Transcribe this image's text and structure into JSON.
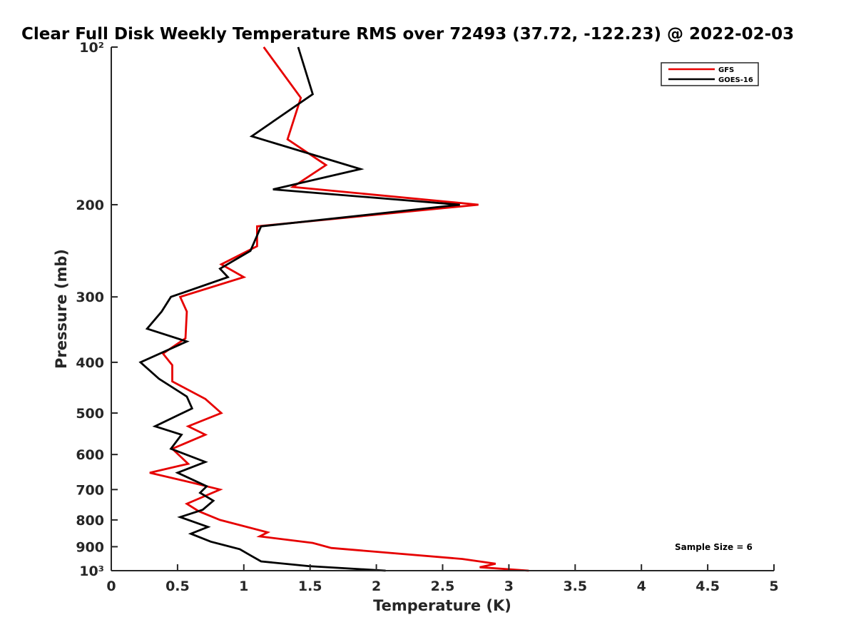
{
  "chart_data": {
    "type": "line",
    "title": "Clear Full Disk Weekly Temperature RMS over 72493 (37.72, -122.23) @ 2022-02-03",
    "xlabel": "Temperature (K)",
    "ylabel": "Pressure (mb)",
    "xlim": [
      0,
      5
    ],
    "ylim": [
      100,
      1000
    ],
    "y_scale": "log",
    "y_reversed": true,
    "grid": false,
    "x_ticks": [
      0,
      0.5,
      1,
      1.5,
      2,
      2.5,
      3,
      3.5,
      4,
      4.5,
      5
    ],
    "x_tick_labels": [
      "0",
      "0.5",
      "1",
      "1.5",
      "2",
      "2.5",
      "3",
      "3.5",
      "4",
      "4.5",
      "5"
    ],
    "y_ticks": [
      100,
      200,
      300,
      400,
      500,
      600,
      700,
      800,
      900,
      1000
    ],
    "y_tick_labels": [
      "10²",
      "200",
      "300",
      "400",
      "500",
      "600",
      "700",
      "800",
      "900",
      "10³"
    ],
    "legend_position": "top-right",
    "annotation": "Sample Size = 6",
    "series": [
      {
        "name": "GFS",
        "color": "#e60000",
        "points": [
          [
            1.15,
            100
          ],
          [
            1.43,
            125
          ],
          [
            1.33,
            150
          ],
          [
            1.62,
            168
          ],
          [
            1.37,
            185
          ],
          [
            2.77,
            200
          ],
          [
            1.1,
            220
          ],
          [
            1.1,
            240
          ],
          [
            0.83,
            260
          ],
          [
            1.0,
            275
          ],
          [
            0.52,
            300
          ],
          [
            0.57,
            320
          ],
          [
            0.56,
            360
          ],
          [
            0.39,
            385
          ],
          [
            0.46,
            405
          ],
          [
            0.46,
            435
          ],
          [
            0.71,
            470
          ],
          [
            0.83,
            500
          ],
          [
            0.58,
            530
          ],
          [
            0.71,
            550
          ],
          [
            0.46,
            585
          ],
          [
            0.58,
            625
          ],
          [
            0.29,
            650
          ],
          [
            0.62,
            680
          ],
          [
            0.82,
            700
          ],
          [
            0.68,
            725
          ],
          [
            0.57,
            745
          ],
          [
            0.66,
            770
          ],
          [
            0.82,
            800
          ],
          [
            1.18,
            845
          ],
          [
            1.12,
            860
          ],
          [
            1.52,
            885
          ],
          [
            1.66,
            905
          ],
          [
            2.65,
            950
          ],
          [
            2.9,
            970
          ],
          [
            2.78,
            985
          ],
          [
            3.15,
            1000
          ]
        ]
      },
      {
        "name": "GOES-16",
        "color": "#000000",
        "points": [
          [
            1.41,
            100
          ],
          [
            1.52,
            123
          ],
          [
            1.06,
            148
          ],
          [
            1.88,
            171
          ],
          [
            1.22,
            187
          ],
          [
            2.63,
            200
          ],
          [
            1.13,
            220
          ],
          [
            1.05,
            245
          ],
          [
            0.82,
            265
          ],
          [
            0.88,
            275
          ],
          [
            0.45,
            300
          ],
          [
            0.38,
            320
          ],
          [
            0.27,
            345
          ],
          [
            0.57,
            365
          ],
          [
            0.22,
            400
          ],
          [
            0.36,
            430
          ],
          [
            0.57,
            465
          ],
          [
            0.61,
            490
          ],
          [
            0.33,
            530
          ],
          [
            0.53,
            550
          ],
          [
            0.45,
            585
          ],
          [
            0.71,
            620
          ],
          [
            0.5,
            650
          ],
          [
            0.72,
            690
          ],
          [
            0.67,
            710
          ],
          [
            0.77,
            735
          ],
          [
            0.69,
            765
          ],
          [
            0.52,
            790
          ],
          [
            0.73,
            825
          ],
          [
            0.6,
            850
          ],
          [
            0.75,
            880
          ],
          [
            0.97,
            910
          ],
          [
            1.05,
            935
          ],
          [
            1.13,
            960
          ],
          [
            1.49,
            980
          ],
          [
            2.07,
            1000
          ]
        ]
      }
    ]
  }
}
